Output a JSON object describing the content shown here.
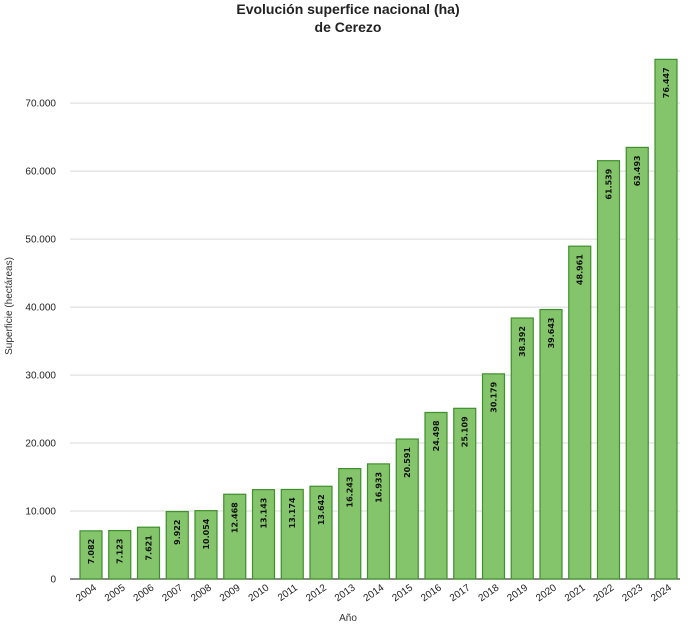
{
  "chart_data": {
    "type": "bar",
    "title": "Evolución superfice nacional (ha)",
    "subtitle": "de Cerezo",
    "xlabel": "Año",
    "ylabel": "Superficie (hectáreas)",
    "categories": [
      "2004",
      "2005",
      "2006",
      "2007",
      "2008",
      "2009",
      "2010",
      "2011",
      "2012",
      "2013",
      "2014",
      "2015",
      "2016",
      "2017",
      "2018",
      "2019",
      "2020",
      "2021",
      "2022",
      "2023",
      "2024"
    ],
    "values": [
      7082,
      7123,
      7621,
      9922,
      10054,
      12468,
      13143,
      13174,
      13642,
      16243,
      16933,
      20591,
      24498,
      25109,
      30179,
      38392,
      39643,
      48961,
      61539,
      63493,
      76447
    ],
    "value_labels": [
      "7.082",
      "7.123",
      "7.621",
      "9.922",
      "10.054",
      "12.468",
      "13.143",
      "13.174",
      "13.642",
      "16.243",
      "16.933",
      "20.591",
      "24.498",
      "25.109",
      "30.179",
      "38.392",
      "39.643",
      "48.961",
      "61.539",
      "63.493",
      "76.447"
    ],
    "y_ticks": [
      0,
      10000,
      20000,
      30000,
      40000,
      50000,
      60000,
      70000
    ],
    "y_tick_labels": [
      "0",
      "10.000",
      "20.000",
      "30.000",
      "40.000",
      "50.000",
      "60.000",
      "70.000"
    ],
    "ylim": [
      0,
      79000
    ],
    "grid": true,
    "colors": {
      "bar_fill": "#84c46a",
      "bar_stroke": "#3f8f2d",
      "gridline": "#d9d9d9",
      "axis": "#444444"
    }
  }
}
